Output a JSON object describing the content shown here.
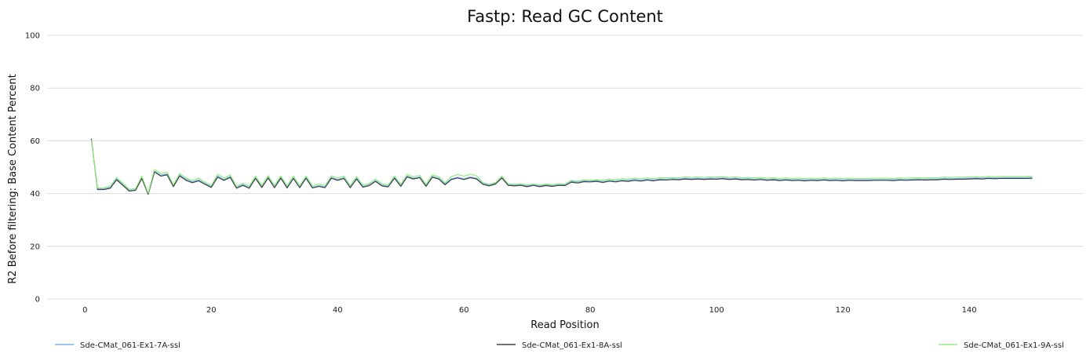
{
  "chart_data": {
    "type": "line",
    "title": "Fastp: Read GC Content",
    "xlabel": "Read Position",
    "ylabel": "R2 Before filtering: Base Content Percent",
    "xlim": [
      -6,
      158
    ],
    "ylim": [
      0,
      100
    ],
    "xticks": [
      0,
      20,
      40,
      60,
      80,
      100,
      120,
      140
    ],
    "yticks": [
      0,
      20,
      40,
      60,
      80,
      100
    ],
    "grid": true,
    "legend_position": "bottom",
    "x": [
      1,
      2,
      3,
      4,
      5,
      6,
      7,
      8,
      9,
      10,
      11,
      12,
      13,
      14,
      15,
      16,
      17,
      18,
      19,
      20,
      21,
      22,
      23,
      24,
      25,
      26,
      27,
      28,
      29,
      30,
      31,
      32,
      33,
      34,
      35,
      36,
      37,
      38,
      39,
      40,
      41,
      42,
      43,
      44,
      45,
      46,
      47,
      48,
      49,
      50,
      51,
      52,
      53,
      54,
      55,
      56,
      57,
      58,
      59,
      60,
      61,
      62,
      63,
      64,
      65,
      66,
      67,
      68,
      69,
      70,
      71,
      72,
      73,
      74,
      75,
      76,
      77,
      78,
      79,
      80,
      81,
      82,
      83,
      84,
      85,
      86,
      87,
      88,
      89,
      90,
      91,
      92,
      93,
      94,
      95,
      96,
      97,
      98,
      99,
      100,
      101,
      102,
      103,
      104,
      105,
      106,
      107,
      108,
      109,
      110,
      111,
      112,
      113,
      114,
      115,
      116,
      117,
      118,
      119,
      120,
      121,
      122,
      123,
      124,
      125,
      126,
      127,
      128,
      129,
      130,
      131,
      132,
      133,
      134,
      135,
      136,
      137,
      138,
      139,
      140,
      141,
      142,
      143,
      144,
      145,
      146,
      147,
      148,
      149,
      150
    ],
    "series": [
      {
        "name": "Sde-CMat_061-Ex1-7A-ssl",
        "color": "#7cb5ec",
        "values": [
          60.5,
          41.8,
          41.8,
          42.3,
          45.5,
          43.4,
          41.2,
          41.4,
          46.0,
          40.0,
          48.5,
          47.0,
          47.4,
          42.9,
          47.0,
          45.4,
          44.4,
          45.2,
          43.8,
          42.6,
          46.6,
          45.3,
          46.5,
          42.3,
          43.4,
          42.3,
          46.0,
          42.6,
          46.2,
          42.5,
          46.1,
          42.4,
          46.0,
          42.5,
          46.1,
          42.4,
          43.0,
          42.5,
          46.1,
          45.3,
          46.0,
          42.5,
          45.8,
          42.7,
          43.3,
          44.9,
          43.2,
          42.8,
          46.1,
          43.0,
          46.6,
          45.8,
          46.3,
          43.0,
          46.5,
          45.8,
          43.6,
          45.6,
          46.2,
          45.6,
          46.3,
          45.8,
          43.8,
          43.2,
          43.9,
          46.2,
          43.4,
          43.2,
          43.4,
          42.9,
          43.4,
          42.9,
          43.3,
          43.0,
          43.4,
          43.3,
          44.6,
          44.3,
          44.8,
          44.7,
          44.9,
          44.5,
          45.0,
          44.7,
          45.1,
          44.9,
          45.3,
          45.0,
          45.4,
          45.1,
          45.5,
          45.4,
          45.6,
          45.5,
          45.8,
          45.6,
          45.8,
          45.6,
          45.8,
          45.7,
          45.9,
          45.6,
          45.8,
          45.5,
          45.6,
          45.4,
          45.6,
          45.3,
          45.5,
          45.2,
          45.4,
          45.2,
          45.3,
          45.1,
          45.3,
          45.2,
          45.4,
          45.2,
          45.3,
          45.1,
          45.3,
          45.2,
          45.2,
          45.2,
          45.3,
          45.3,
          45.3,
          45.2,
          45.4,
          45.3,
          45.4,
          45.5,
          45.4,
          45.5,
          45.5,
          45.7,
          45.6,
          45.7,
          45.7,
          45.8,
          45.9,
          45.8,
          46.0,
          45.9,
          46.0,
          46.0,
          46.0,
          46.0,
          46.0,
          46.1
        ]
      },
      {
        "name": "Sde-CMat_061-Ex1-8A-ssl",
        "color": "#434348",
        "values": [
          60.8,
          41.5,
          41.5,
          42.0,
          45.2,
          43.1,
          40.9,
          41.2,
          45.7,
          39.7,
          48.2,
          46.6,
          47.1,
          42.6,
          46.7,
          45.0,
          44.1,
          44.8,
          43.5,
          42.3,
          46.2,
          45.0,
          46.1,
          42.0,
          43.1,
          42.0,
          45.7,
          42.3,
          45.9,
          42.2,
          45.8,
          42.1,
          45.7,
          42.2,
          45.8,
          42.1,
          42.7,
          42.2,
          45.8,
          45.0,
          45.7,
          42.2,
          45.5,
          42.4,
          43.0,
          44.6,
          42.9,
          42.5,
          45.8,
          42.7,
          46.3,
          45.5,
          46.0,
          42.7,
          46.2,
          45.5,
          43.3,
          45.3,
          45.9,
          45.3,
          46.0,
          45.5,
          43.5,
          42.9,
          43.6,
          45.9,
          43.1,
          42.9,
          43.1,
          42.6,
          43.1,
          42.6,
          43.0,
          42.7,
          43.1,
          43.0,
          44.3,
          44.0,
          44.5,
          44.4,
          44.6,
          44.2,
          44.7,
          44.4,
          44.8,
          44.6,
          45.0,
          44.7,
          45.1,
          44.8,
          45.2,
          45.1,
          45.3,
          45.2,
          45.5,
          45.3,
          45.5,
          45.3,
          45.5,
          45.4,
          45.6,
          45.3,
          45.5,
          45.2,
          45.3,
          45.1,
          45.3,
          45.0,
          45.2,
          44.9,
          45.1,
          44.9,
          45.0,
          44.8,
          45.0,
          44.9,
          45.1,
          44.9,
          45.0,
          44.8,
          45.0,
          44.9,
          44.9,
          44.9,
          45.0,
          45.0,
          45.0,
          44.9,
          45.1,
          45.0,
          45.1,
          45.2,
          45.1,
          45.2,
          45.2,
          45.4,
          45.3,
          45.4,
          45.4,
          45.5,
          45.6,
          45.5,
          45.7,
          45.6,
          45.7,
          45.7,
          45.7,
          45.7,
          45.7,
          45.8
        ]
      },
      {
        "name": "Sde-CMat_061-Ex1-9A-ssl",
        "color": "#90ed7d",
        "values": [
          60.3,
          42.1,
          42.2,
          42.8,
          46.1,
          43.9,
          41.6,
          41.9,
          46.6,
          40.2,
          49.1,
          47.6,
          48.1,
          43.4,
          47.6,
          45.9,
          44.9,
          45.8,
          44.3,
          43.0,
          47.3,
          45.9,
          47.1,
          42.7,
          43.9,
          42.8,
          46.6,
          43.1,
          46.8,
          43.0,
          46.7,
          42.9,
          46.6,
          43.0,
          46.7,
          42.9,
          43.6,
          43.0,
          46.7,
          45.8,
          46.6,
          43.0,
          46.4,
          43.2,
          43.8,
          45.5,
          43.7,
          43.2,
          46.7,
          43.5,
          47.2,
          46.4,
          46.9,
          43.5,
          47.1,
          46.4,
          44.1,
          46.4,
          47.2,
          46.6,
          47.3,
          46.7,
          44.1,
          43.5,
          44.2,
          46.6,
          43.7,
          43.5,
          43.7,
          43.2,
          43.7,
          43.2,
          43.6,
          43.3,
          43.7,
          43.6,
          45.0,
          44.7,
          45.2,
          45.1,
          45.3,
          45.0,
          45.5,
          45.2,
          45.6,
          45.4,
          45.8,
          45.5,
          45.9,
          45.6,
          46.0,
          45.9,
          46.1,
          46.0,
          46.3,
          46.1,
          46.3,
          46.1,
          46.3,
          46.2,
          46.4,
          46.1,
          46.3,
          46.0,
          46.1,
          45.9,
          46.1,
          45.8,
          46.0,
          45.7,
          45.9,
          45.7,
          45.8,
          45.6,
          45.8,
          45.7,
          45.9,
          45.7,
          45.8,
          45.6,
          45.8,
          45.7,
          45.7,
          45.7,
          45.8,
          45.8,
          45.8,
          45.7,
          45.9,
          45.8,
          45.9,
          46.0,
          45.9,
          46.0,
          46.0,
          46.2,
          46.1,
          46.2,
          46.2,
          46.3,
          46.4,
          46.3,
          46.5,
          46.4,
          46.5,
          46.5,
          46.5,
          46.5,
          46.5,
          46.6
        ]
      }
    ]
  }
}
